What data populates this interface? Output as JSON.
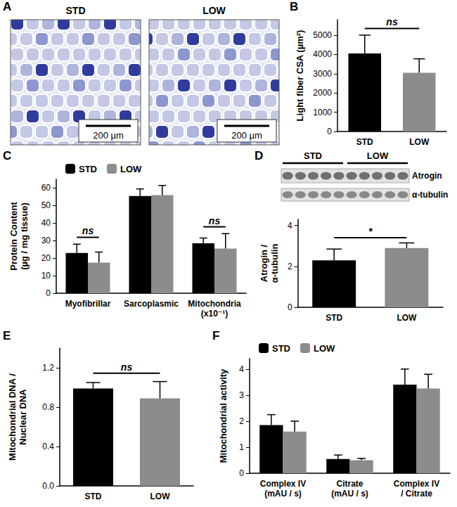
{
  "histology": {
    "panel": "A",
    "images": [
      {
        "title": "STD",
        "scale_bar": "200 µm"
      },
      {
        "title": "LOW",
        "scale_bar": "200 µm"
      }
    ]
  },
  "blot": {
    "groups": [
      "STD",
      "LOW"
    ],
    "bands": [
      "Atrogin",
      "α-tubulin"
    ]
  },
  "chart_data": [
    {
      "panel": "B",
      "type": "bar",
      "categories": [
        "STD",
        "LOW"
      ],
      "values": [
        4050,
        3050
      ],
      "error": [
        950,
        720
      ],
      "colors": [
        "#000000",
        "#8c8c8c"
      ],
      "ylabel": "Light fiber CSA (µm²)",
      "ylim": [
        0,
        5800
      ],
      "yticks": [
        0,
        1000,
        2000,
        3000,
        4000,
        5000
      ],
      "grid": false,
      "annotations": [
        {
          "text": "ns",
          "between": [
            "STD",
            "LOW"
          ]
        }
      ]
    },
    {
      "panel": "C",
      "type": "bar",
      "categories": [
        "Myofibrillar",
        "Sarcoplasmic",
        "Mitochondria\n(x10⁻¹)"
      ],
      "series": [
        {
          "name": "STD",
          "color": "#000000",
          "values": [
            23,
            55.5,
            28.5
          ],
          "error": [
            5,
            4,
            3
          ]
        },
        {
          "name": "LOW",
          "color": "#8c8c8c",
          "values": [
            17.5,
            56,
            25.5
          ],
          "error": [
            6,
            5.5,
            8.5
          ]
        }
      ],
      "ylabel": "Protein Content\n(µg / mg tissue)",
      "ylim": [
        0,
        65
      ],
      "yticks": [
        0,
        10,
        20,
        30,
        40,
        50,
        60
      ],
      "grid": false,
      "legend": "top-left",
      "annotations": [
        {
          "text": "ns",
          "category": "Myofibrillar"
        },
        {
          "text": "ns",
          "category": "Mitochondria\n(x10⁻¹)"
        }
      ]
    },
    {
      "panel": "D",
      "type": "bar",
      "categories": [
        "STD",
        "LOW"
      ],
      "values": [
        2.3,
        2.9
      ],
      "error": [
        0.55,
        0.25
      ],
      "colors": [
        "#000000",
        "#8c8c8c"
      ],
      "ylabel": "Atrogin /\nα-tubulin",
      "ylim": [
        0,
        4.3
      ],
      "yticks": [
        0,
        2,
        4
      ],
      "grid": false,
      "annotations": [
        {
          "text": "*",
          "between": [
            "STD",
            "LOW"
          ]
        }
      ]
    },
    {
      "panel": "E",
      "type": "bar",
      "categories": [
        "STD",
        "LOW"
      ],
      "values": [
        0.99,
        0.89
      ],
      "error": [
        0.06,
        0.17
      ],
      "colors": [
        "#000000",
        "#8c8c8c"
      ],
      "ylabel": "Mitochondrial DNA /\nNuclear DNA",
      "ylim": [
        0,
        1.4
      ],
      "yticks": [
        {
          "value": 0,
          "label": "0.0"
        },
        0.4,
        0.8,
        1.2
      ],
      "grid": false,
      "annotations": [
        {
          "text": "ns",
          "between": [
            "STD",
            "LOW"
          ]
        }
      ]
    },
    {
      "panel": "F",
      "type": "bar",
      "categories": [
        "Complex IV\n(mAU / s)",
        "Citrate\n(mAU / s)",
        "Complex IV\n/ Citrate"
      ],
      "series": [
        {
          "name": "STD",
          "color": "#000000",
          "values": [
            1.85,
            0.55,
            3.4
          ],
          "error": [
            0.4,
            0.15,
            0.6
          ]
        },
        {
          "name": "LOW",
          "color": "#8c8c8c",
          "values": [
            1.6,
            0.5,
            3.25
          ],
          "error": [
            0.4,
            0.07,
            0.55
          ]
        }
      ],
      "ylabel": "Mitochondrial activity",
      "ylim": [
        0,
        4.4
      ],
      "yticks": [
        0,
        1,
        2,
        3,
        4
      ],
      "grid": false,
      "legend": "top-left"
    }
  ]
}
